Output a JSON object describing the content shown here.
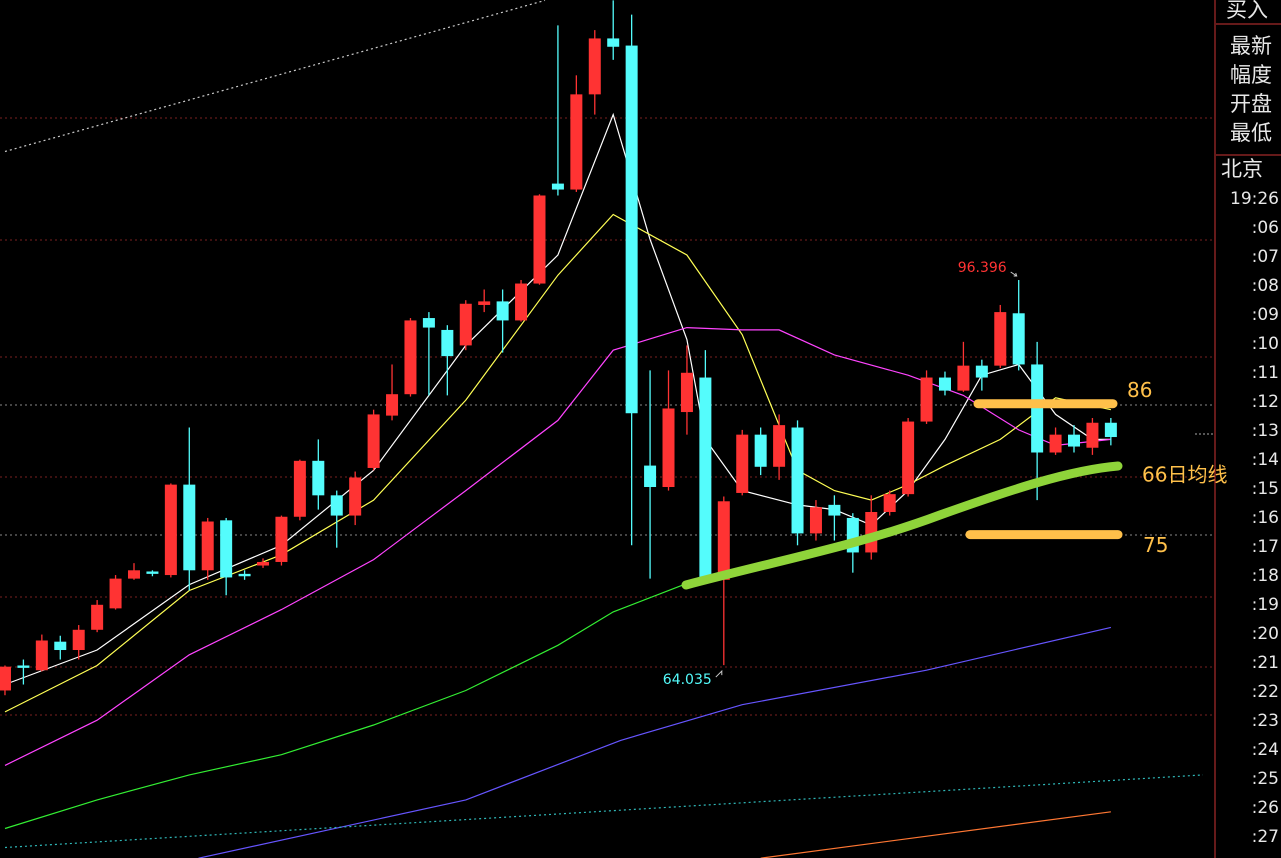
{
  "chart_data": {
    "type": "candlestick",
    "ylim": [
      47.82,
      119.93
    ],
    "xlim": [
      -0.27,
      65.65
    ],
    "up_color": "#ff3333",
    "down_color": "#54fcfc",
    "open": [
      61.9,
      64.0,
      63.6,
      66.0,
      65.3,
      67.0,
      68.8,
      71.3,
      71.9,
      71.6,
      79.2,
      72.0,
      76.2,
      71.7,
      72.4,
      72.7,
      76.5,
      81.2,
      78.3,
      76.6,
      80.6,
      85.0,
      86.8,
      93.2,
      92.2,
      90.9,
      94.3,
      94.6,
      93.0,
      96.1,
      104.5,
      104.0,
      112.0,
      116.7,
      116.1,
      80.8,
      79.0,
      85.3,
      88.2,
      71.2,
      78.5,
      83.4,
      80.7,
      84.0,
      75.1,
      77.5,
      76.4,
      73.5,
      76.9,
      78.4,
      84.5,
      88.2,
      87.1,
      89.2,
      89.2,
      93.6,
      89.3,
      81.9,
      83.4,
      82.3,
      84.4
    ],
    "high": [
      64.0,
      64.5,
      66.6,
      66.5,
      67.4,
      69.5,
      71.6,
      72.6,
      72.0,
      79.3,
      84.0,
      76.4,
      76.4,
      72.0,
      73.0,
      76.6,
      81.3,
      83.0,
      78.7,
      80.3,
      85.5,
      89.3,
      93.2,
      93.7,
      92.6,
      94.7,
      95.6,
      95.6,
      96.4,
      103.6,
      117.8,
      113.6,
      117.4,
      119.9,
      118.7,
      88.8,
      88.8,
      90.9,
      90.5,
      78.2,
      83.8,
      84.0,
      85.1,
      84.6,
      77.9,
      78.3,
      76.8,
      78.3,
      78.7,
      84.8,
      88.8,
      88.7,
      91.2,
      89.7,
      94.3,
      96.396,
      91.2,
      84.0,
      84.2,
      84.8,
      84.8
    ],
    "low": [
      61.5,
      62.4,
      63.5,
      64.5,
      64.5,
      66.8,
      68.7,
      71.2,
      71.5,
      71.4,
      70.3,
      71.2,
      69.9,
      71.2,
      72.2,
      72.4,
      76.2,
      77.1,
      73.9,
      75.8,
      80.4,
      84.6,
      86.6,
      86.7,
      86.7,
      90.5,
      93.7,
      90.3,
      92.9,
      96.0,
      103.5,
      103.8,
      110.3,
      114.9,
      74.1,
      71.3,
      78.7,
      83.4,
      71.2,
      64.035,
      78.3,
      80.0,
      79.6,
      74.1,
      74.5,
      74.5,
      71.8,
      72.9,
      76.6,
      78.2,
      84.3,
      86.7,
      87.0,
      87.1,
      89.0,
      88.8,
      77.9,
      81.7,
      81.9,
      81.7,
      82.5
    ],
    "close": [
      63.9,
      63.8,
      66.1,
      65.3,
      67.0,
      69.1,
      71.3,
      72.0,
      71.7,
      79.2,
      72.0,
      76.1,
      71.4,
      71.5,
      72.7,
      76.5,
      81.2,
      78.3,
      76.6,
      79.8,
      85.1,
      86.8,
      93.0,
      92.4,
      90.0,
      94.4,
      94.6,
      93.0,
      96.1,
      103.5,
      104.0,
      112.0,
      116.7,
      116.0,
      85.2,
      79.0,
      85.6,
      88.6,
      71.3,
      77.8,
      83.4,
      80.7,
      84.2,
      75.1,
      77.3,
      76.6,
      73.5,
      76.9,
      78.4,
      84.5,
      88.2,
      87.1,
      89.2,
      88.2,
      93.7,
      89.3,
      81.9,
      83.4,
      82.4,
      84.4,
      83.2
    ],
    "lines": [
      {
        "color": "#ffffff",
        "x": [
          0,
          5,
          10,
          15,
          20,
          25,
          30,
          33,
          35,
          37,
          38,
          40,
          43,
          45,
          47,
          49,
          51,
          53,
          55,
          57,
          59,
          60
        ],
        "values": [
          62.4,
          65.3,
          70.8,
          74.1,
          80.4,
          90.9,
          98.5,
          110.3,
          99.8,
          91.4,
          83.0,
          78.7,
          77.5,
          77.1,
          75.8,
          78.7,
          83.0,
          88.4,
          89.3,
          85.1,
          83.0,
          83.0
        ]
      },
      {
        "color": "#ffff55",
        "x": [
          0,
          5,
          10,
          15,
          20,
          25,
          30,
          33,
          37,
          40,
          43,
          45,
          47,
          49,
          51,
          54,
          57,
          60
        ],
        "values": [
          60.1,
          64.0,
          70.3,
          73.3,
          77.9,
          86.3,
          96.8,
          101.9,
          98.5,
          91.8,
          80.4,
          78.7,
          77.9,
          79.2,
          80.8,
          83.0,
          86.5,
          85.5
        ]
      },
      {
        "color": "#ff44ff",
        "x": [
          0,
          5,
          10,
          15,
          20,
          25,
          30,
          33,
          37,
          40,
          42,
          45,
          49,
          52,
          55,
          57,
          60
        ],
        "values": [
          55.6,
          59.4,
          64.9,
          68.7,
          72.9,
          78.7,
          84.6,
          90.5,
          92.4,
          92.2,
          92.2,
          90.1,
          88.4,
          86.7,
          83.8,
          82.5,
          83.0
        ]
      },
      {
        "color": "#33ee33",
        "x": [
          0,
          5,
          10,
          15,
          20,
          25,
          30,
          33,
          37
        ],
        "values": [
          50.3,
          52.7,
          54.8,
          56.5,
          59.0,
          61.9,
          65.7,
          68.5,
          70.9
        ]
      },
      {
        "color": "#6655ff",
        "x": [
          10.5,
          25,
          33.4,
          40,
          50,
          60
        ],
        "values": [
          47.8,
          52.7,
          57.7,
          60.7,
          63.6,
          67.2
        ]
      },
      {
        "color": "#2fb8b8",
        "x": [
          0,
          65
        ],
        "values": [
          48.7,
          54.8
        ],
        "dashed": true
      },
      {
        "color": "#ff7733",
        "x": [
          41,
          60
        ],
        "values": [
          47.8,
          51.7
        ]
      },
      {
        "color": "#cccccc",
        "x": [
          0,
          29.3
        ],
        "values": [
          107.2,
          119.9
        ],
        "dashed": true
      }
    ],
    "levels": [
      86,
      75
    ],
    "ma_label": "66日均线"
  },
  "panel": {
    "action": "买入",
    "fields": [
      "最新",
      "幅度",
      "开盘",
      "最低"
    ],
    "city": "北京",
    "time": "19:26",
    "minutes": [
      ":06",
      ":07",
      ":08",
      ":09",
      ":10",
      ":11",
      ":12",
      ":13",
      ":14",
      ":15",
      ":16",
      ":17",
      ":18",
      ":19",
      ":20",
      ":21",
      ":22",
      ":23",
      ":24",
      ":25",
      ":26",
      ":27"
    ]
  }
}
